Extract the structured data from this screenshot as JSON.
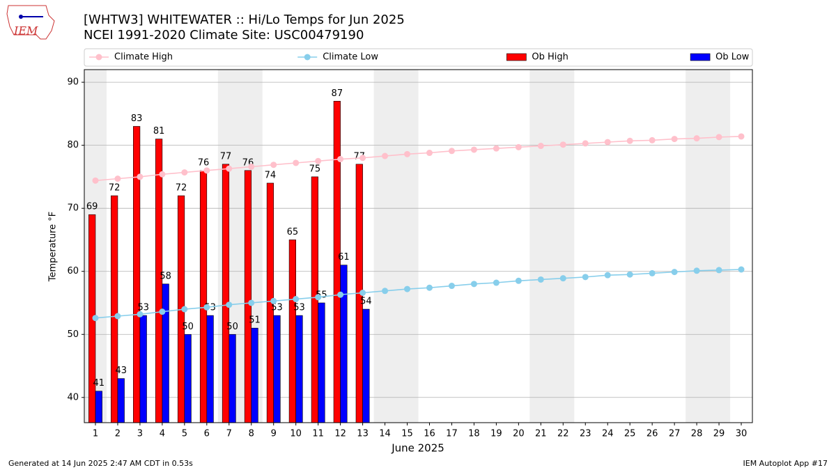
{
  "chart_data": {
    "type": "combo",
    "title": "[WHTW3] WHITEWATER :: Hi/Lo Temps for Jun 2025",
    "subtitle": "NCEI 1991-2020 Climate Site: USC00479190",
    "x_label": "June 2025",
    "y_label": "Temperature °F",
    "footer_left": "Generated at 14 Jun 2025 2:47 AM CDT in 0.53s",
    "footer_right": "IEM Autoplot App #17",
    "logo_text": "IEM",
    "x": [
      1,
      2,
      3,
      4,
      5,
      6,
      7,
      8,
      9,
      10,
      11,
      12,
      13,
      14,
      15,
      16,
      17,
      18,
      19,
      20,
      21,
      22,
      23,
      24,
      25,
      26,
      27,
      28,
      29,
      30
    ],
    "xlim": [
      0.5,
      30.5
    ],
    "xticks": [
      1,
      2,
      3,
      4,
      5,
      6,
      7,
      8,
      9,
      10,
      11,
      12,
      13,
      14,
      15,
      16,
      17,
      18,
      19,
      20,
      21,
      22,
      23,
      24,
      25,
      26,
      27,
      28,
      29,
      30
    ],
    "ylim": [
      36,
      92
    ],
    "yticks": [
      40,
      50,
      60,
      70,
      80,
      90
    ],
    "grid": true,
    "shaded_ranges": [
      [
        0.5,
        1.5
      ],
      [
        6.5,
        8.5
      ],
      [
        13.5,
        15.5
      ],
      [
        20.5,
        22.5
      ],
      [
        27.5,
        29.5
      ]
    ],
    "shade_color": "#eeeeee",
    "series": [
      {
        "name": "Climate High",
        "type": "line",
        "color": "#ffc0cb",
        "values": [
          74.4,
          74.7,
          75.0,
          75.4,
          75.7,
          76.0,
          76.3,
          76.6,
          76.9,
          77.2,
          77.5,
          77.8,
          78.0,
          78.3,
          78.6,
          78.8,
          79.1,
          79.3,
          79.5,
          79.7,
          79.9,
          80.1,
          80.3,
          80.5,
          80.7,
          80.8,
          81.0,
          81.1,
          81.3,
          81.4
        ]
      },
      {
        "name": "Climate Low",
        "type": "line",
        "color": "#87ceeb",
        "values": [
          52.6,
          52.9,
          53.2,
          53.6,
          54.0,
          54.3,
          54.7,
          55.0,
          55.3,
          55.6,
          55.9,
          56.3,
          56.6,
          56.9,
          57.2,
          57.4,
          57.7,
          58.0,
          58.2,
          58.5,
          58.7,
          58.9,
          59.1,
          59.4,
          59.5,
          59.7,
          59.9,
          60.1,
          60.2,
          60.3
        ]
      },
      {
        "name": "Ob High",
        "type": "bar",
        "color": "#ff0000",
        "values": [
          69,
          72,
          83,
          81,
          72,
          76,
          77,
          76,
          74,
          65,
          75,
          87,
          77,
          null,
          null,
          null,
          null,
          null,
          null,
          null,
          null,
          null,
          null,
          null,
          null,
          null,
          null,
          null,
          null,
          null
        ]
      },
      {
        "name": "Ob Low",
        "type": "bar",
        "color": "#0000ff",
        "values": [
          41,
          43,
          53,
          58,
          50,
          53,
          50,
          51,
          53,
          53,
          55,
          61,
          54,
          null,
          null,
          null,
          null,
          null,
          null,
          null,
          null,
          null,
          null,
          null,
          null,
          null,
          null,
          null,
          null,
          null
        ]
      }
    ]
  }
}
